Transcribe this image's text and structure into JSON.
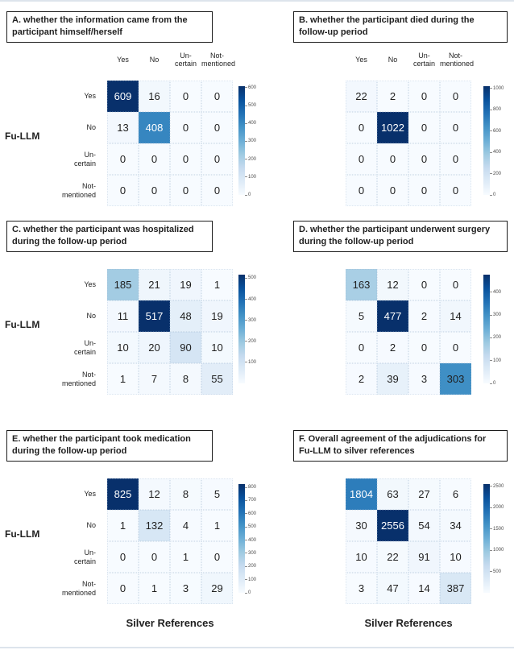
{
  "figure": {
    "model_axis_label": "Fu-LLM",
    "x_axis_label": "Silver References",
    "categories": [
      "Yes",
      "No",
      "Uncertain",
      "Not-mentioned"
    ],
    "category_labels_display": [
      "Yes",
      "No",
      "Un-\ncertain",
      "Not-\nmentioned"
    ]
  },
  "style": {
    "cmap": "Blues",
    "cmap_stops": [
      "#f7fbff",
      "#deebf7",
      "#c6dbef",
      "#9ecae1",
      "#6baed6",
      "#4292c6",
      "#2171b5",
      "#08519c",
      "#08306b"
    ],
    "dark_text": "#1f1f1f",
    "light_text": "#ffffff",
    "white_text_threshold": 0.65,
    "title_border": "#1c1c1c",
    "page_rule_color": "#dde4ec"
  },
  "chart_data": [
    {
      "panel": "A",
      "type": "heatmap",
      "title": "A. whether the information came from the participant himself/herself",
      "rows": [
        "Yes",
        "No",
        "Uncertain",
        "Not-mentioned"
      ],
      "cols": [
        "Yes",
        "No",
        "Uncertain",
        "Not-mentioned"
      ],
      "values": [
        [
          609,
          16,
          0,
          0
        ],
        [
          13,
          408,
          0,
          0
        ],
        [
          0,
          0,
          0,
          0
        ],
        [
          0,
          0,
          0,
          0
        ]
      ],
      "vmin": 0,
      "vmax": 609,
      "colorbar_ticks": [
        0,
        100,
        200,
        300,
        400,
        500,
        600
      ],
      "side": "left",
      "show_col_headers": true,
      "show_row_labels": true,
      "show_xlabel": false
    },
    {
      "panel": "B",
      "type": "heatmap",
      "title": "B. whether the participant died during the follow-up period",
      "rows": [
        "Yes",
        "No",
        "Uncertain",
        "Not-mentioned"
      ],
      "cols": [
        "Yes",
        "No",
        "Uncertain",
        "Not-mentioned"
      ],
      "values": [
        [
          22,
          2,
          0,
          0
        ],
        [
          0,
          1022,
          0,
          0
        ],
        [
          0,
          0,
          0,
          0
        ],
        [
          0,
          0,
          0,
          0
        ]
      ],
      "vmin": 0,
      "vmax": 1022,
      "colorbar_ticks": [
        0,
        200,
        400,
        600,
        800,
        1000
      ],
      "side": "right",
      "show_col_headers": true,
      "show_row_labels": false,
      "show_xlabel": false
    },
    {
      "panel": "C",
      "type": "heatmap",
      "title": "C. whether the participant was hospitalized during the follow-up period",
      "rows": [
        "Yes",
        "No",
        "Uncertain",
        "Not-mentioned"
      ],
      "cols": [
        "Yes",
        "No",
        "Uncertain",
        "Not-mentioned"
      ],
      "values": [
        [
          185,
          21,
          19,
          1
        ],
        [
          11,
          517,
          48,
          19
        ],
        [
          10,
          20,
          90,
          10
        ],
        [
          1,
          7,
          8,
          55
        ]
      ],
      "vmin": 0,
      "vmax": 517,
      "colorbar_ticks": [
        100,
        200,
        300,
        400,
        500
      ],
      "side": "left",
      "show_col_headers": false,
      "show_row_labels": true,
      "show_xlabel": false
    },
    {
      "panel": "D",
      "type": "heatmap",
      "title": "D. whether the participant underwent surgery during the follow-up period",
      "rows": [
        "Yes",
        "No",
        "Uncertain",
        "Not-mentioned"
      ],
      "cols": [
        "Yes",
        "No",
        "Uncertain",
        "Not-mentioned"
      ],
      "values": [
        [
          163,
          12,
          0,
          0
        ],
        [
          5,
          477,
          2,
          14
        ],
        [
          0,
          2,
          0,
          0
        ],
        [
          2,
          39,
          3,
          303
        ]
      ],
      "vmin": 0,
      "vmax": 477,
      "colorbar_ticks": [
        0,
        100,
        200,
        300,
        400
      ],
      "side": "right",
      "show_col_headers": false,
      "show_row_labels": false,
      "show_xlabel": false
    },
    {
      "panel": "E",
      "type": "heatmap",
      "title": "E. whether the participant took medication during the follow-up period",
      "rows": [
        "Yes",
        "No",
        "Uncertain",
        "Not-mentioned"
      ],
      "cols": [
        "Yes",
        "No",
        "Uncertain",
        "Not-mentioned"
      ],
      "values": [
        [
          825,
          12,
          8,
          5
        ],
        [
          1,
          132,
          4,
          1
        ],
        [
          0,
          0,
          1,
          0
        ],
        [
          0,
          1,
          3,
          29
        ]
      ],
      "vmin": 0,
      "vmax": 825,
      "colorbar_ticks": [
        0,
        100,
        200,
        300,
        400,
        500,
        600,
        700,
        800
      ],
      "side": "left",
      "show_col_headers": false,
      "show_row_labels": true,
      "show_xlabel": true
    },
    {
      "panel": "F",
      "type": "heatmap",
      "title": "F. Overall agreement of the adjudications for Fu-LLM to silver references",
      "rows": [
        "Yes",
        "No",
        "Uncertain",
        "Not-mentioned"
      ],
      "cols": [
        "Yes",
        "No",
        "Uncertain",
        "Not-mentioned"
      ],
      "values": [
        [
          1804,
          63,
          27,
          6
        ],
        [
          30,
          2556,
          54,
          34
        ],
        [
          10,
          22,
          91,
          10
        ],
        [
          3,
          47,
          14,
          387
        ]
      ],
      "vmin": 0,
      "vmax": 2556,
      "colorbar_ticks": [
        500,
        1000,
        1500,
        2000,
        2500
      ],
      "side": "right",
      "show_col_headers": false,
      "show_row_labels": false,
      "show_xlabel": true
    }
  ]
}
